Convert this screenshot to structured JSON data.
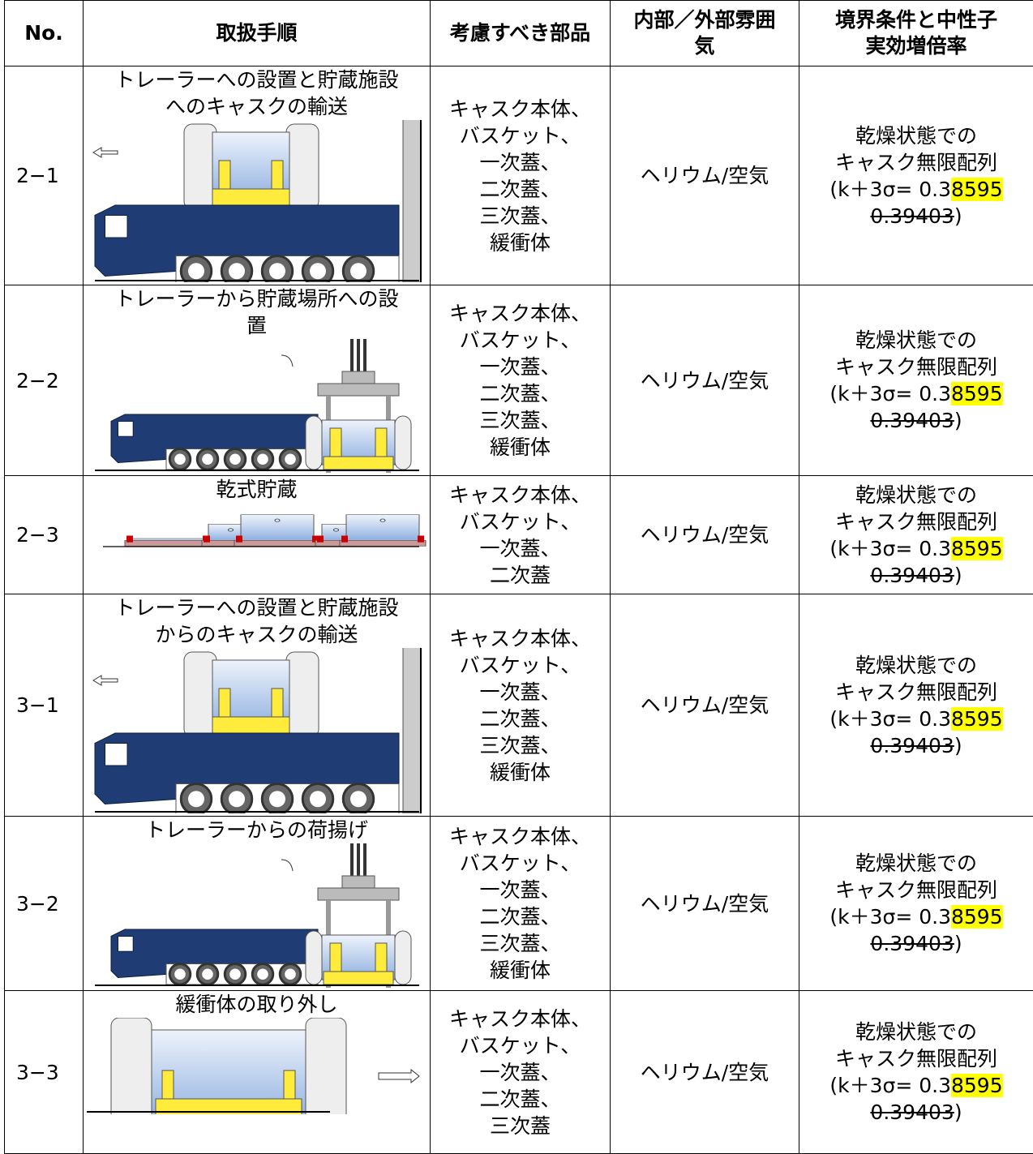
{
  "table": {
    "header": [
      "No.",
      "取扱手順",
      "考慮すべき部品",
      "内部／外部雰囲気",
      "境界条件と中性子実効増倍率"
    ],
    "rows": [
      {
        "no": "2−1",
        "procedure": [
          "トレーラーへの設置と貯蔵施設",
          "へのキャスクの輸送"
        ],
        "parts": [
          "キャスク本体、",
          "バスケット、",
          "一次蓋、",
          "二次蓋、",
          "三次蓋、",
          "緩衝体"
        ],
        "atmosphere": "ヘリウム/空気",
        "condition": {
          "line1": "乾燥状態での",
          "line2": "キャスク無限配列",
          "prefix": "(k＋3σ= 0.3",
          "highlight": "8595",
          "struck": "0.39403",
          "suffix": ")"
        }
      },
      {
        "no": "2−2",
        "procedure": [
          "トレーラーから貯蔵場所への設",
          "置"
        ],
        "parts": [
          "キャスク本体、",
          "バスケット、",
          "一次蓋、",
          "二次蓋、",
          "三次蓋、",
          "緩衝体"
        ],
        "atmosphere": "ヘリウム/空気",
        "condition": {
          "line1": "乾燥状態での",
          "line2": "キャスク無限配列",
          "prefix": "(k＋3σ= 0.3",
          "highlight": "8595",
          "struck": "0.39403",
          "suffix": ")"
        }
      },
      {
        "no": "2−3",
        "procedure": [
          "乾式貯蔵"
        ],
        "parts": [
          "キャスク本体、",
          "バスケット、",
          "一次蓋、",
          "二次蓋"
        ],
        "atmosphere": "ヘリウム/空気",
        "condition": {
          "line1": "乾燥状態での",
          "line2": "キャスク無限配列",
          "prefix": "(k＋3σ= 0.3",
          "highlight": "8595",
          "struck": "0.39403",
          "suffix": ")"
        }
      },
      {
        "no": "3−1",
        "procedure": [
          "トレーラーへの設置と貯蔵施設",
          "からのキャスクの輸送"
        ],
        "parts": [
          "キャスク本体、",
          "バスケット、",
          "一次蓋、",
          "二次蓋、",
          "三次蓋、",
          "緩衝体"
        ],
        "atmosphere": "ヘリウム/空気",
        "condition": {
          "line1": "乾燥状態での",
          "line2": "キャスク無限配列",
          "prefix": "(k＋3σ= 0.3",
          "highlight": "8595",
          "struck": "0.39403",
          "suffix": ")"
        }
      },
      {
        "no": "3−2",
        "procedure": [
          "トレーラーからの荷揚げ"
        ],
        "parts": [
          "キャスク本体、",
          "バスケット、",
          "一次蓋、",
          "二次蓋、",
          "三次蓋、",
          "緩衝体"
        ],
        "atmosphere": "ヘリウム/空気",
        "condition": {
          "line1": "乾燥状態での",
          "line2": "キャスク無限配列",
          "prefix": "(k＋3σ= 0.3",
          "highlight": "8595",
          "struck": "0.39403",
          "suffix": ")"
        }
      },
      {
        "no": "3−3",
        "procedure": [
          "緩衝体の取り外し"
        ],
        "parts": [
          "キャスク本体、",
          "バスケット、",
          "一次蓋、",
          "二次蓋、",
          "三次蓋"
        ],
        "atmosphere": "ヘリウム/空気",
        "condition": {
          "line1": "乾燥状態での",
          "line2": "キャスク無限配列",
          "prefix": "(k＋3σ= 0.3",
          "highlight": "8595",
          "struck": "0.39403",
          "suffix": ")"
        }
      }
    ]
  }
}
